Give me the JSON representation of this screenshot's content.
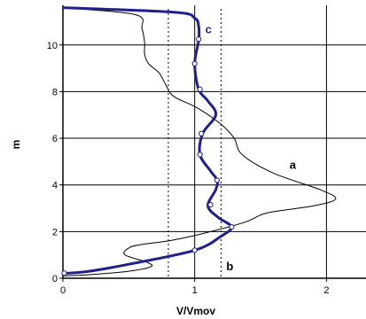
{
  "chart_data": {
    "type": "line",
    "xlabel": "V/Vmov",
    "ylabel": "m",
    "xlim": [
      0,
      2.3
    ],
    "ylim": [
      0,
      11.7
    ],
    "x_ticks": [
      "0",
      "1",
      "2"
    ],
    "y_ticks": [
      "0",
      "2",
      "4",
      "6",
      "8",
      "10"
    ],
    "grid": true,
    "series": [
      {
        "name": "a",
        "style": "thin",
        "color": "#000000",
        "points": [
          [
            0,
            11.6
          ],
          [
            0.55,
            11.3
          ],
          [
            0.6,
            10.7
          ],
          [
            0.62,
            10.1
          ],
          [
            0.62,
            9.6
          ],
          [
            0.65,
            9.2
          ],
          [
            0.73,
            8.8
          ],
          [
            0.78,
            8.3
          ],
          [
            0.84,
            7.8
          ],
          [
            1.02,
            7.3
          ],
          [
            1.2,
            6.6
          ],
          [
            1.3,
            6
          ],
          [
            1.36,
            5.3
          ],
          [
            1.6,
            4.5
          ],
          [
            1.95,
            3.8
          ],
          [
            2.07,
            3.4
          ],
          [
            1.9,
            3.1
          ],
          [
            1.55,
            2.8
          ],
          [
            1.38,
            2.4
          ],
          [
            1.05,
            1.9
          ],
          [
            0.8,
            1.6
          ],
          [
            0.6,
            1.45
          ],
          [
            0.5,
            1.3
          ],
          [
            0.47,
            1
          ],
          [
            0.63,
            0.7
          ],
          [
            0.67,
            0.5
          ],
          [
            0.5,
            0.3
          ],
          [
            0.2,
            0.15
          ],
          [
            0,
            0.1
          ]
        ]
      },
      {
        "name": "c",
        "style": "thick-with-markers",
        "color": "#1f1f8f",
        "points": [
          [
            0,
            11.6
          ],
          [
            0.85,
            11.4
          ],
          [
            1.0,
            11.15
          ],
          [
            1.03,
            10.8
          ],
          [
            1.03,
            10.2
          ],
          [
            1.0,
            9.2
          ],
          [
            1.03,
            8.1
          ],
          [
            1.1,
            7.6
          ],
          [
            1.16,
            7.0
          ],
          [
            1.06,
            6.2
          ],
          [
            1.04,
            5.3
          ],
          [
            1.12,
            4.6
          ],
          [
            1.17,
            4.2
          ],
          [
            1.16,
            3.8
          ],
          [
            1.1,
            3.1
          ],
          [
            1.18,
            2.6
          ],
          [
            1.28,
            2.2
          ],
          [
            1.2,
            1.8
          ],
          [
            1.0,
            1.2
          ],
          [
            0.5,
            0.6
          ],
          [
            0.2,
            0.3
          ],
          [
            0,
            0.2
          ]
        ],
        "markers": [
          [
            1.03,
            10.25
          ],
          [
            1.0,
            9.2
          ],
          [
            1.04,
            8.1
          ],
          [
            1.05,
            6.2
          ],
          [
            1.04,
            5.3
          ],
          [
            1.17,
            4.2
          ],
          [
            1.12,
            3.15
          ],
          [
            1.28,
            2.2
          ],
          [
            1.0,
            1.2
          ],
          [
            0.01,
            0.22
          ]
        ]
      }
    ],
    "reference_lines": [
      {
        "x": 0.8,
        "style": "dotted"
      },
      {
        "x": 1.2,
        "style": "dotted",
        "label": "b"
      }
    ],
    "annotations": [
      {
        "text": "a",
        "x": 1.72,
        "y": 4.7
      },
      {
        "text": "c",
        "x": 1.08,
        "y": 10.5
      },
      {
        "text": "b",
        "x": 1.24,
        "y": 0.35
      }
    ]
  }
}
